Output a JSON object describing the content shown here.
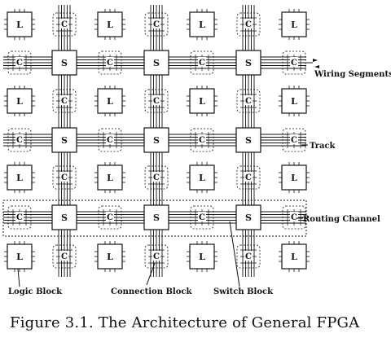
{
  "blocks": {
    "logic_letter": "L",
    "switch_letter": "S",
    "connection_letter": "C"
  },
  "labels": {
    "wiring_segments": "Wiring Segments",
    "track": "Track",
    "routing_channel": "Routing Channel",
    "logic_block": "Logic Block",
    "connection_block": "Connection Block",
    "switch_block": "Switch Block"
  },
  "caption": "Figure 3.1.  The Architecture of General FPGA",
  "colors": {
    "ink": "#111111",
    "background": "#ffffff"
  }
}
